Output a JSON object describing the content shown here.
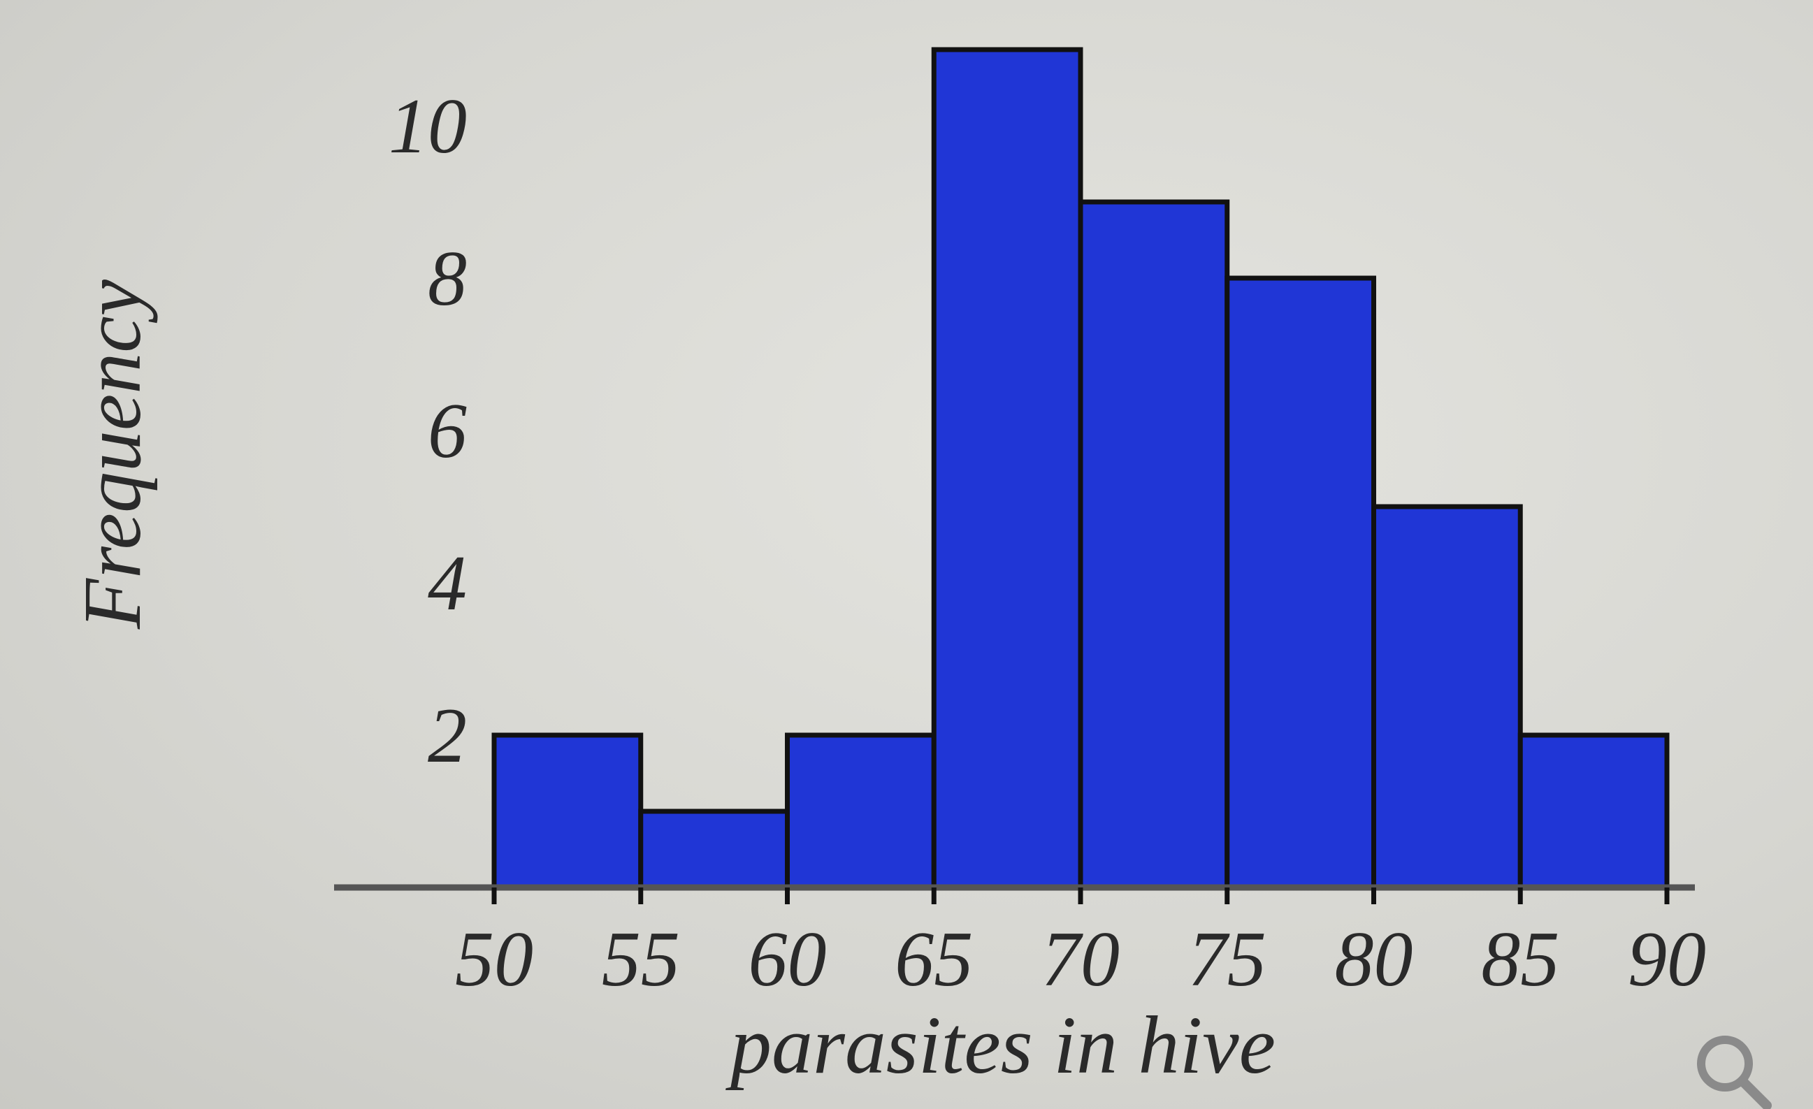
{
  "chart_data": {
    "type": "bar",
    "title": "",
    "xlabel": "parasites in hive",
    "ylabel": "Frequency",
    "bin_edges": [
      50,
      55,
      60,
      65,
      70,
      75,
      80,
      85,
      90
    ],
    "x_tick_labels": [
      "50",
      "55",
      "60",
      "65",
      "70",
      "75",
      "80",
      "85",
      "90"
    ],
    "values": [
      2,
      1,
      2,
      11,
      9,
      8,
      5,
      2
    ],
    "y_ticks": [
      2,
      4,
      6,
      8,
      10
    ],
    "y_tick_labels": [
      "2",
      "4",
      "6",
      "8",
      "10"
    ],
    "ylim": [
      0,
      11
    ],
    "xlim": [
      50,
      90
    ],
    "grid": false,
    "colors": {
      "bar": "#2036d6",
      "edge": "#111111"
    }
  },
  "icons": {
    "zoom": "magnifier-icon"
  }
}
